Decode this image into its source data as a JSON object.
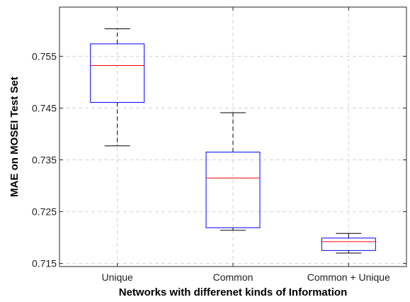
{
  "chart_data": {
    "type": "box",
    "title": "",
    "xlabel": "Networks with differenet kinds of Information",
    "ylabel": "MAE on MOSEI Test Set",
    "ylim": [
      0.7144,
      0.7645
    ],
    "yticks": [
      0.715,
      0.725,
      0.735,
      0.745,
      0.755
    ],
    "ytick_labels": [
      "0.715",
      "0.725",
      "0.735",
      "0.745",
      "0.755"
    ],
    "grid": true,
    "categories": [
      "Unique",
      "Common",
      "Common + Unique"
    ],
    "boxes": [
      {
        "label": "Unique",
        "whisker_low": 0.7377,
        "q1": 0.7461,
        "median": 0.7532,
        "q3": 0.7574,
        "whisker_high": 0.7603
      },
      {
        "label": "Common",
        "whisker_low": 0.7214,
        "q1": 0.7219,
        "median": 0.7315,
        "q3": 0.7365,
        "whisker_high": 0.7441
      },
      {
        "label": "Common + Unique",
        "whisker_low": 0.717,
        "q1": 0.7175,
        "median": 0.7192,
        "q3": 0.7199,
        "whisker_high": 0.7208
      }
    ],
    "colors": {
      "box": "#0000ff",
      "median": "#ff0000",
      "whisker": "#000000",
      "grid": "#d3d3d3",
      "axis": "#262626"
    }
  }
}
